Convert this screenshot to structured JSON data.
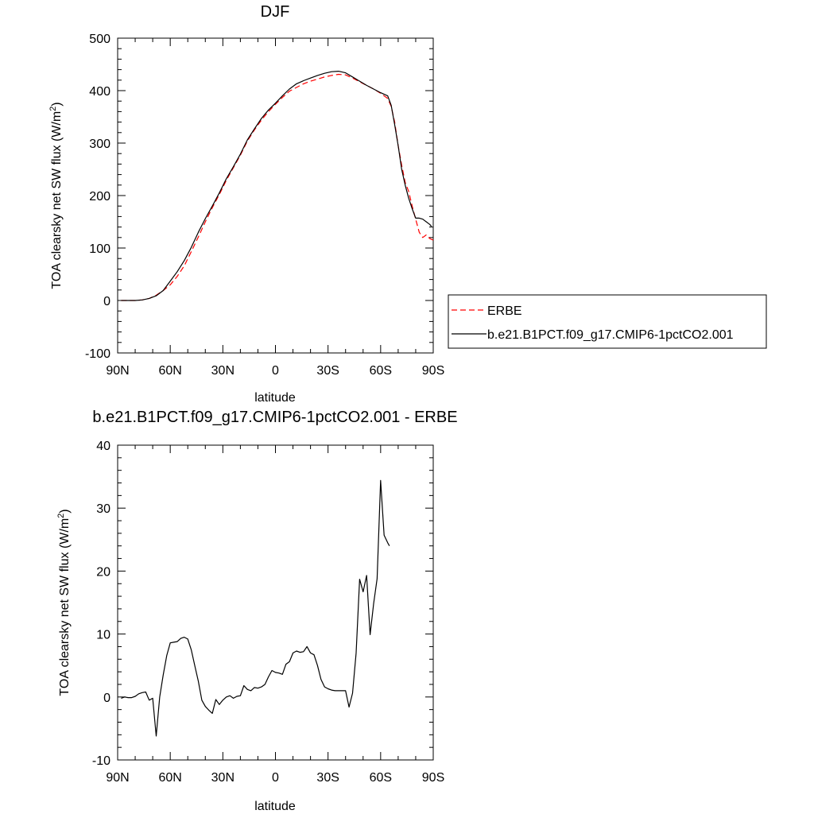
{
  "chart_data": [
    {
      "type": "line",
      "title": "DJF",
      "xlabel": "latitude",
      "ylabel": "TOA clearsky net SW flux (W/m",
      "ylabel_sup": "2",
      "ylabel_close": ")",
      "xlim": [
        -90,
        90
      ],
      "ylim": [
        -100,
        500
      ],
      "xticks": [
        -90,
        -60,
        -30,
        0,
        30,
        60,
        90
      ],
      "xtick_labels": [
        "90N",
        "60N",
        "30N",
        "0",
        "30S",
        "60S",
        "90S"
      ],
      "yticks": [
        -100,
        0,
        100,
        200,
        300,
        400,
        500
      ],
      "ytick_labels": [
        "-100",
        "0",
        "100",
        "200",
        "300",
        "400",
        "500"
      ],
      "legend_position": "right",
      "series": [
        {
          "name": "ERBE",
          "color": "#ff0000",
          "dash": "dashed",
          "points": [
            [
              -88,
              0
            ],
            [
              -84,
              0
            ],
            [
              -80,
              0
            ],
            [
              -76,
              1
            ],
            [
              -72,
              4
            ],
            [
              -68,
              10
            ],
            [
              -64,
              19
            ],
            [
              -60,
              30
            ],
            [
              -56,
              46
            ],
            [
              -52,
              66
            ],
            [
              -48,
              93
            ],
            [
              -44,
              121
            ],
            [
              -40,
              150
            ],
            [
              -36,
              177
            ],
            [
              -32,
              202
            ],
            [
              -28,
              229
            ],
            [
              -24,
              253
            ],
            [
              -20,
              277
            ],
            [
              -16,
              304
            ],
            [
              -12,
              325
            ],
            [
              -8,
              344
            ],
            [
              -4,
              360
            ],
            [
              0,
              374
            ],
            [
              4,
              387
            ],
            [
              8,
              399
            ],
            [
              12,
              406
            ],
            [
              16,
              413
            ],
            [
              20,
              418
            ],
            [
              24,
              422
            ],
            [
              28,
              426
            ],
            [
              32,
              429
            ],
            [
              36,
              431
            ],
            [
              40,
              430
            ],
            [
              44,
              424
            ],
            [
              48,
              417
            ],
            [
              52,
              410
            ],
            [
              56,
              403
            ],
            [
              60,
              395
            ],
            [
              64,
              385
            ],
            [
              66,
              370
            ],
            [
              68,
              340
            ],
            [
              70,
              295
            ],
            [
              72,
              258
            ],
            [
              74,
              225
            ],
            [
              76,
              208
            ],
            [
              78,
              180
            ],
            [
              80,
              155
            ],
            [
              82,
              130
            ],
            [
              84,
              120
            ],
            [
              86,
              125
            ],
            [
              88,
              118
            ],
            [
              90,
              115
            ]
          ]
        },
        {
          "name": "b.e21.B1PCT.f09_g17.CMIP6-1pctCO2.001",
          "color": "#000000",
          "dash": "solid",
          "points": [
            [
              -88,
              0
            ],
            [
              -84,
              0
            ],
            [
              -80,
              0
            ],
            [
              -76,
              1
            ],
            [
              -72,
              4
            ],
            [
              -68,
              9
            ],
            [
              -64,
              19
            ],
            [
              -60,
              37
            ],
            [
              -56,
              55
            ],
            [
              -52,
              76
            ],
            [
              -48,
              101
            ],
            [
              -44,
              130
            ],
            [
              -40,
              156
            ],
            [
              -36,
              180
            ],
            [
              -32,
              205
            ],
            [
              -28,
              232
            ],
            [
              -24,
              255
            ],
            [
              -20,
              279
            ],
            [
              -16,
              306
            ],
            [
              -12,
              327
            ],
            [
              -8,
              347
            ],
            [
              -4,
              363
            ],
            [
              0,
              376
            ],
            [
              4,
              390
            ],
            [
              8,
              403
            ],
            [
              12,
              413
            ],
            [
              16,
              419
            ],
            [
              20,
              424
            ],
            [
              24,
              429
            ],
            [
              28,
              433
            ],
            [
              32,
              436
            ],
            [
              36,
              437
            ],
            [
              40,
              434
            ],
            [
              44,
              426
            ],
            [
              48,
              418
            ],
            [
              52,
              410
            ],
            [
              56,
              403
            ],
            [
              60,
              396
            ],
            [
              64,
              390
            ],
            [
              66,
              372
            ],
            [
              68,
              335
            ],
            [
              70,
              295
            ],
            [
              72,
              250
            ],
            [
              74,
              220
            ],
            [
              76,
              195
            ],
            [
              78,
              175
            ],
            [
              80,
              157
            ],
            [
              82,
              157
            ],
            [
              84,
              155
            ],
            [
              86,
              150
            ],
            [
              88,
              145
            ],
            [
              89,
              141
            ]
          ]
        }
      ]
    },
    {
      "type": "line",
      "title": "b.e21.B1PCT.f09_g17.CMIP6-1pctCO2.001 - ERBE",
      "xlabel": "latitude",
      "ylabel": "TOA clearsky net SW flux (W/m",
      "ylabel_sup": "2",
      "ylabel_close": ")",
      "xlim": [
        -90,
        90
      ],
      "ylim": [
        -10,
        40
      ],
      "xticks": [
        -90,
        -60,
        -30,
        0,
        30,
        60,
        90
      ],
      "xtick_labels": [
        "90N",
        "60N",
        "30N",
        "0",
        "30S",
        "60S",
        "90S"
      ],
      "yticks": [
        -10,
        0,
        10,
        20,
        30,
        40
      ],
      "ytick_labels": [
        "-10",
        "0",
        "10",
        "20",
        "30",
        "40"
      ],
      "series": [
        {
          "color": "#000000",
          "dash": "solid",
          "points": [
            [
              -88,
              -0.2
            ],
            [
              -86,
              0
            ],
            [
              -84,
              -0.1
            ],
            [
              -82,
              -0.1
            ],
            [
              -80,
              0.1
            ],
            [
              -78,
              0.5
            ],
            [
              -76,
              0.7
            ],
            [
              -74,
              0.8
            ],
            [
              -72,
              -0.5
            ],
            [
              -70,
              -0.2
            ],
            [
              -68,
              -6.2
            ],
            [
              -66,
              0
            ],
            [
              -64,
              3.5
            ],
            [
              -62,
              6.6
            ],
            [
              -60,
              8.6
            ],
            [
              -58,
              8.7
            ],
            [
              -56,
              8.8
            ],
            [
              -54,
              9.3
            ],
            [
              -52,
              9.5
            ],
            [
              -50,
              9.2
            ],
            [
              -48,
              7.5
            ],
            [
              -46,
              5
            ],
            [
              -44,
              2.5
            ],
            [
              -42,
              -0.5
            ],
            [
              -40,
              -1.5
            ],
            [
              -38,
              -2.1
            ],
            [
              -36,
              -2.6
            ],
            [
              -34,
              -0.4
            ],
            [
              -32,
              -1.2
            ],
            [
              -30,
              -0.5
            ],
            [
              -28,
              0
            ],
            [
              -26,
              0.2
            ],
            [
              -24,
              -0.2
            ],
            [
              -22,
              0.1
            ],
            [
              -20,
              0.2
            ],
            [
              -18,
              1.8
            ],
            [
              -16,
              1.2
            ],
            [
              -14,
              1
            ],
            [
              -12,
              1.5
            ],
            [
              -10,
              1.4
            ],
            [
              -8,
              1.6
            ],
            [
              -6,
              2
            ],
            [
              -4,
              3.2
            ],
            [
              -2,
              4.2
            ],
            [
              0,
              3.9
            ],
            [
              2,
              3.8
            ],
            [
              4,
              3.6
            ],
            [
              6,
              5.2
            ],
            [
              8,
              5.6
            ],
            [
              10,
              7
            ],
            [
              12,
              7.3
            ],
            [
              14,
              7.1
            ],
            [
              16,
              7.2
            ],
            [
              18,
              8
            ],
            [
              20,
              7
            ],
            [
              22,
              6.7
            ],
            [
              24,
              5
            ],
            [
              26,
              2.8
            ],
            [
              28,
              1.6
            ],
            [
              30,
              1.3
            ],
            [
              32,
              1.1
            ],
            [
              34,
              1
            ],
            [
              36,
              1
            ],
            [
              38,
              1
            ],
            [
              40,
              1
            ],
            [
              42,
              -1.6
            ],
            [
              44,
              0.6
            ],
            [
              46,
              7
            ],
            [
              48,
              18.7
            ],
            [
              50,
              16.7
            ],
            [
              52,
              19.3
            ],
            [
              54,
              9.9
            ],
            [
              56,
              14.8
            ],
            [
              58,
              18.8
            ],
            [
              60,
              34.4
            ],
            [
              62,
              25.7
            ],
            [
              64,
              24.5
            ],
            [
              65,
              24
            ]
          ]
        }
      ]
    }
  ]
}
